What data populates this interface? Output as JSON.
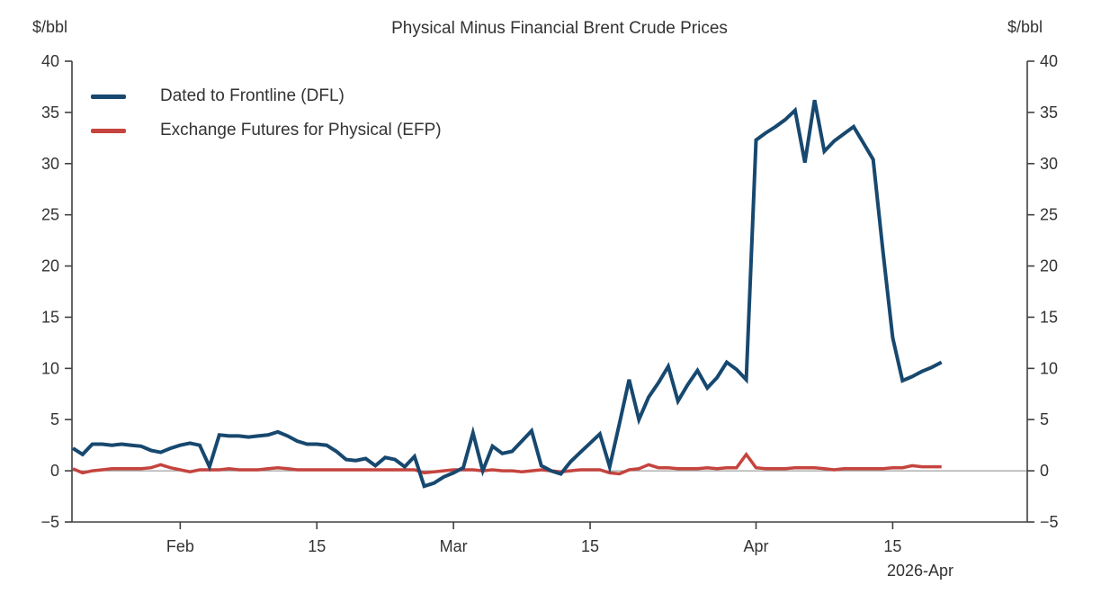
{
  "header": {
    "title": "Physical Minus Financial Brent Crude Prices",
    "unit_left": "$/bbl",
    "unit_right": "$/bbl"
  },
  "footer": {
    "date_note": "2026-Apr"
  },
  "legend": {
    "items": [
      {
        "label": "Dated to Frontline (DFL)",
        "color": "#17486f"
      },
      {
        "label": "Exchange Futures for Physical (EFP)",
        "color": "#c5443e"
      }
    ]
  },
  "chart_data": {
    "type": "line",
    "title": "Physical Minus Financial Brent Crude Prices",
    "ylabel_left": "$/bbl",
    "ylabel_right": "$/bbl",
    "ylim": [
      -5,
      40
    ],
    "y_ticks": [
      -5,
      0,
      5,
      10,
      15,
      20,
      25,
      30,
      35,
      40
    ],
    "grid": "zero-line-only",
    "legend_position": "top-left-inside",
    "x_tick_labels": [
      "Feb",
      "15",
      "Mar",
      "15",
      "Apr",
      "15"
    ],
    "x_tick_day_index": [
      11,
      25,
      39,
      53,
      70,
      84
    ],
    "x_axis_note": "2026-Apr",
    "dates": [
      "Jan 21",
      "Jan 22",
      "Jan 23",
      "Jan 24",
      "Jan 25",
      "Jan 26",
      "Jan 27",
      "Jan 28",
      "Jan 29",
      "Jan 30",
      "Jan 31",
      "Feb 1",
      "Feb 2",
      "Feb 3",
      "Feb 4",
      "Feb 5",
      "Feb 6",
      "Feb 7",
      "Feb 8",
      "Feb 9",
      "Feb 10",
      "Feb 11",
      "Feb 12",
      "Feb 13",
      "Feb 14",
      "Feb 15",
      "Feb 16",
      "Feb 17",
      "Feb 18",
      "Feb 19",
      "Feb 20",
      "Feb 21",
      "Feb 22",
      "Feb 23",
      "Feb 24",
      "Feb 25",
      "Feb 26",
      "Feb 27",
      "Feb 28",
      "Mar 1",
      "Mar 2",
      "Mar 3",
      "Mar 4",
      "Mar 5",
      "Mar 6",
      "Mar 7",
      "Mar 8",
      "Mar 9",
      "Mar 10",
      "Mar 11",
      "Mar 12",
      "Mar 13",
      "Mar 14",
      "Mar 15",
      "Mar 16",
      "Mar 17",
      "Mar 18",
      "Mar 19",
      "Mar 20",
      "Mar 21",
      "Mar 22",
      "Mar 23",
      "Mar 24",
      "Mar 25",
      "Mar 26",
      "Mar 27",
      "Mar 28",
      "Mar 29",
      "Mar 30",
      "Mar 31",
      "Apr 1",
      "Apr 2",
      "Apr 3",
      "Apr 4",
      "Apr 5",
      "Apr 6",
      "Apr 7",
      "Apr 8",
      "Apr 9",
      "Apr 10",
      "Apr 11",
      "Apr 12",
      "Apr 13",
      "Apr 14",
      "Apr 15",
      "Apr 16",
      "Apr 17",
      "Apr 18",
      "Apr 19",
      "Apr 20"
    ],
    "series": [
      {
        "name": "Dated to Frontline (DFL)",
        "color": "#17486f",
        "stroke_width": 4,
        "values": [
          2.2,
          1.6,
          2.6,
          2.6,
          2.5,
          2.6,
          2.5,
          2.4,
          2.0,
          1.8,
          2.2,
          2.5,
          2.7,
          2.5,
          0.4,
          3.5,
          3.4,
          3.4,
          3.3,
          3.4,
          3.5,
          3.8,
          3.4,
          2.9,
          2.6,
          2.6,
          2.5,
          1.9,
          1.1,
          1.0,
          1.2,
          0.5,
          1.3,
          1.1,
          0.4,
          1.4,
          -1.5,
          -1.2,
          -0.6,
          -0.2,
          0.3,
          3.7,
          0.0,
          2.4,
          1.7,
          1.9,
          2.9,
          3.9,
          0.5,
          0.0,
          -0.3,
          0.9,
          1.8,
          2.7,
          3.6,
          0.4,
          4.6,
          8.9,
          5.0,
          7.2,
          8.6,
          10.2,
          6.8,
          8.4,
          9.8,
          8.1,
          9.1,
          10.6,
          9.9,
          8.9,
          32.3,
          33.0,
          33.6,
          34.3,
          35.2,
          30.1,
          36.2,
          31.2,
          32.2,
          32.9,
          33.6,
          32.0,
          30.4,
          21.5,
          13.0,
          8.8,
          9.2,
          9.7,
          10.1,
          10.6
        ]
      },
      {
        "name": "Exchange Futures for Physical (EFP)",
        "color": "#c5443e",
        "stroke_width": 3.5,
        "values": [
          0.2,
          -0.2,
          0.0,
          0.1,
          0.2,
          0.2,
          0.2,
          0.2,
          0.3,
          0.6,
          0.3,
          0.1,
          -0.1,
          0.1,
          0.1,
          0.1,
          0.2,
          0.1,
          0.1,
          0.1,
          0.2,
          0.3,
          0.2,
          0.1,
          0.1,
          0.1,
          0.1,
          0.1,
          0.1,
          0.1,
          0.1,
          0.1,
          0.1,
          0.1,
          0.1,
          0.1,
          -0.2,
          -0.1,
          0.0,
          0.1,
          0.1,
          0.1,
          0.0,
          0.1,
          0.0,
          0.0,
          -0.1,
          0.0,
          0.1,
          0.0,
          -0.1,
          0.0,
          0.1,
          0.1,
          0.1,
          -0.2,
          -0.3,
          0.1,
          0.2,
          0.6,
          0.3,
          0.3,
          0.2,
          0.2,
          0.2,
          0.3,
          0.2,
          0.3,
          0.3,
          1.6,
          0.3,
          0.2,
          0.2,
          0.2,
          0.3,
          0.3,
          0.3,
          0.2,
          0.1,
          0.2,
          0.2,
          0.2,
          0.2,
          0.2,
          0.3,
          0.3,
          0.5,
          0.4,
          0.4,
          0.4
        ]
      }
    ]
  }
}
